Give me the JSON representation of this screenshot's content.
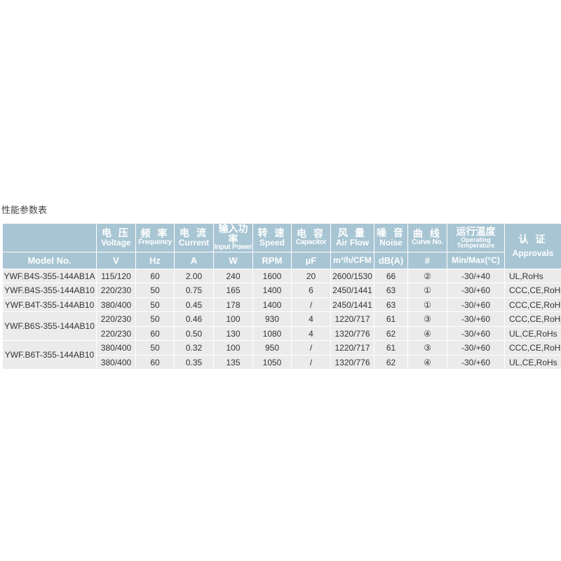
{
  "page_title": "性能参数表",
  "colors": {
    "header_bg": "#a8c5d3",
    "row_bg": "#ebebeb"
  },
  "headers": {
    "model": "Model No.",
    "voltage": {
      "zh": "电 压",
      "en": "Voltage",
      "unit": "V"
    },
    "frequency": {
      "zh": "频 率",
      "en": "Frequency",
      "unit": "Hz"
    },
    "current": {
      "zh": "电 流",
      "en": "Current",
      "unit": "A"
    },
    "power": {
      "zh": "输入功率",
      "en": "Input Power",
      "unit": "W"
    },
    "speed": {
      "zh": "转 速",
      "en": "Speed",
      "unit": "RPM"
    },
    "capacitor": {
      "zh": "电 容",
      "en": "Capacitor",
      "unit": "µF"
    },
    "airflow": {
      "zh": "风 量",
      "en": "Air Flow",
      "unit": "m³/h/CFM"
    },
    "noise": {
      "zh": "噪 音",
      "en": "Noise",
      "unit": "dB(A)"
    },
    "curve": {
      "zh": "曲 线",
      "en": "Curve No.",
      "unit": "#"
    },
    "temp": {
      "zh": "运行温度",
      "en1": "Operating",
      "en2": "Temperature",
      "unit": "Min/Max(°C)"
    },
    "approvals": {
      "zh": "认 证",
      "en": "Approvals"
    }
  },
  "rows": [
    {
      "model": "YWF.B4S-355-144AB1A",
      "v": "115/120",
      "hz": "60",
      "a": "2.00",
      "w": "240",
      "rpm": "1600",
      "uf": "20",
      "air": "2600/1530",
      "db": "66",
      "curve": "②",
      "temp": "-30/+40",
      "appr": "UL,RoHs"
    },
    {
      "model": "YWF.B4S-355-144AB10",
      "v": "220/230",
      "hz": "50",
      "a": "0.75",
      "w": "165",
      "rpm": "1400",
      "uf": "6",
      "air": "2450/1441",
      "db": "63",
      "curve": "①",
      "temp": "-30/+60",
      "appr": "CCC,CE,RoHs"
    },
    {
      "model": "YWF.B4T-355-144AB10",
      "v": "380/400",
      "hz": "50",
      "a": "0.45",
      "w": "178",
      "rpm": "1400",
      "uf": "/",
      "air": "2450/1441",
      "db": "63",
      "curve": "①",
      "temp": "-30/+60",
      "appr": "CCC,CE,RoHs"
    },
    {
      "model": "YWF.B6S-355-144AB10",
      "v": "220/230",
      "hz": "50",
      "a": "0.46",
      "w": "100",
      "rpm": "930",
      "uf": "4",
      "air": "1220/717",
      "db": "61",
      "curve": "③",
      "temp": "-30/+60",
      "appr": "CCC,CE,RoHs"
    },
    {
      "v": "220/230",
      "hz": "60",
      "a": "0.50",
      "w": "130",
      "rpm": "1080",
      "uf": "4",
      "air": "1320/776",
      "db": "62",
      "curve": "④",
      "temp": "-30/+60",
      "appr": "UL,CE,RoHs"
    },
    {
      "model": "YWF.B6T-355-144AB10",
      "v": "380/400",
      "hz": "50",
      "a": "0.32",
      "w": "100",
      "rpm": "950",
      "uf": "/",
      "air": "1220/717",
      "db": "61",
      "curve": "③",
      "temp": "-30/+60",
      "appr": "CCC,CE,RoHs"
    },
    {
      "v": "380/400",
      "hz": "60",
      "a": "0.35",
      "w": "135",
      "rpm": "1050",
      "uf": "/",
      "air": "1320/776",
      "db": "62",
      "curve": "④",
      "temp": "-30/+60",
      "appr": "UL,CE,RoHs"
    }
  ]
}
